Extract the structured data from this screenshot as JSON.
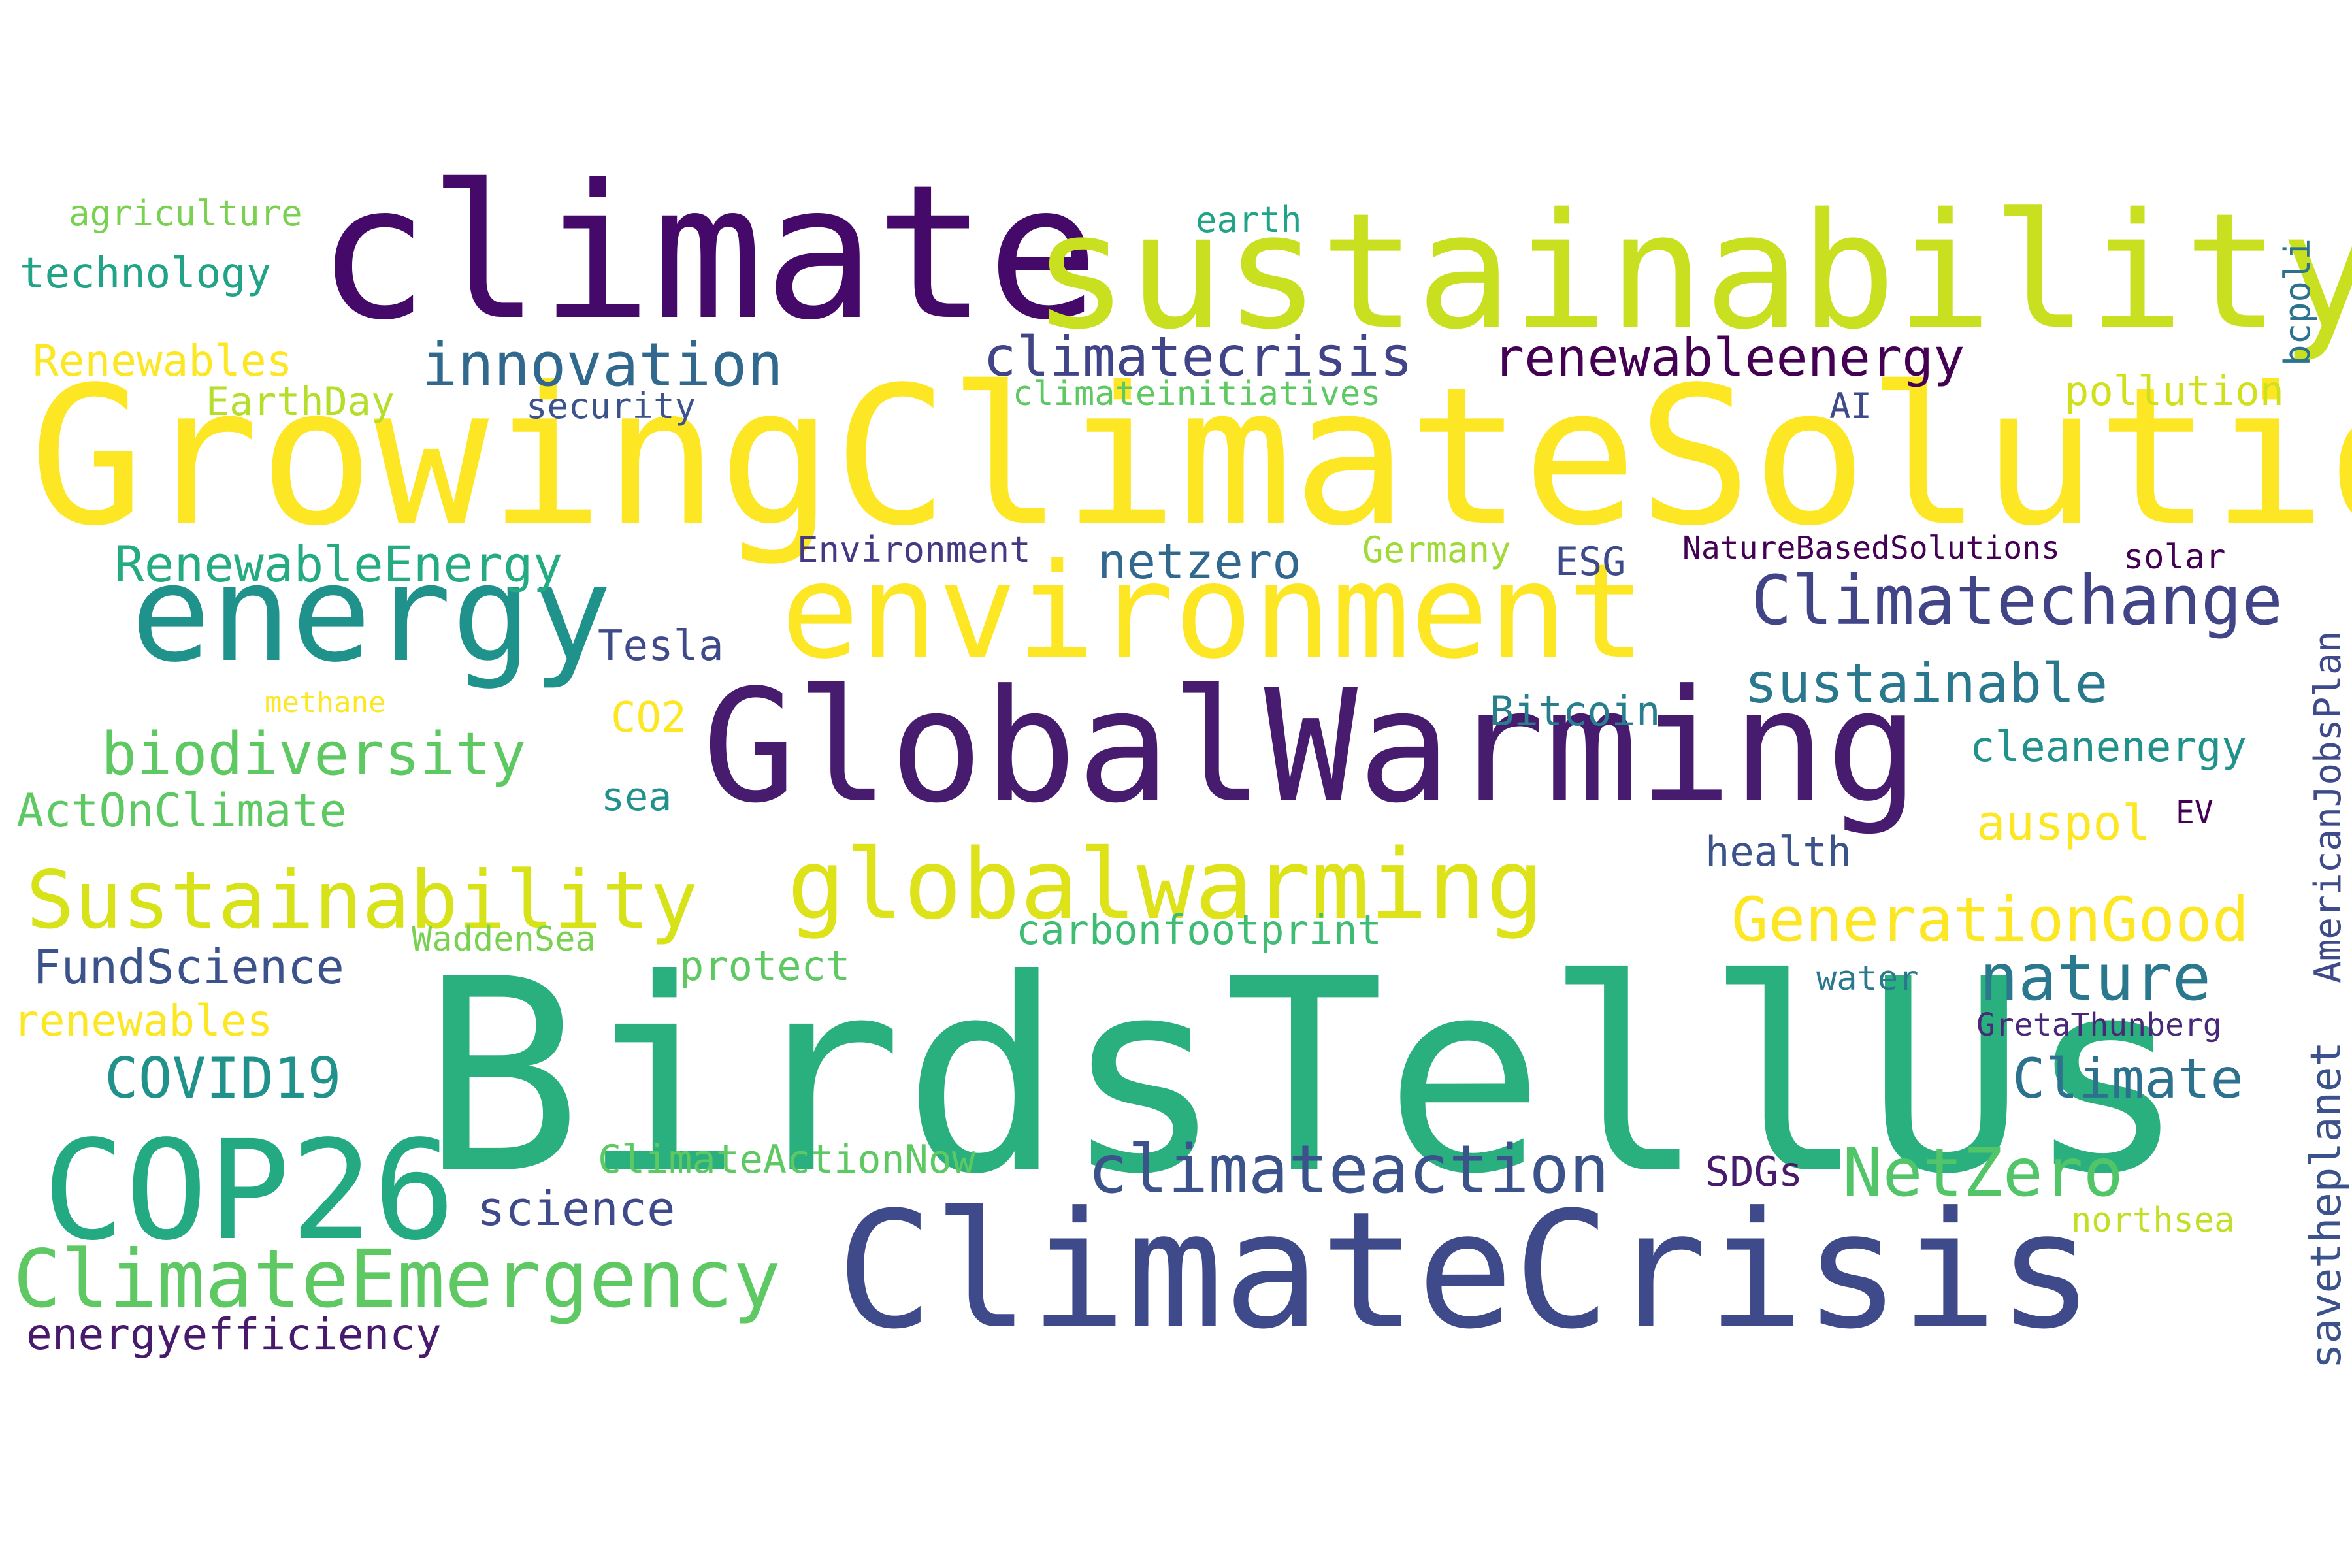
{
  "words": [
    {
      "text": "GrowingClimateSolutions",
      "color": "#fde725",
      "weight": 1.0
    },
    {
      "text": "BirdsTellUs",
      "color": "#2ab07f",
      "weight": 0.98
    },
    {
      "text": "climate",
      "color": "#450a69",
      "weight": 0.82
    },
    {
      "text": "sustainability",
      "color": "#c8e020",
      "weight": 0.8
    },
    {
      "text": "GlobalWarming",
      "color": "#471c6e",
      "weight": 0.78
    },
    {
      "text": "ClimateCrisis",
      "color": "#3e4a89",
      "weight": 0.76
    },
    {
      "text": "environment",
      "color": "#fde725",
      "weight": 0.62
    },
    {
      "text": "energy",
      "color": "#20928c",
      "weight": 0.6
    },
    {
      "text": "COP26",
      "color": "#24aa83",
      "weight": 0.58
    },
    {
      "text": "globalwarming",
      "color": "#dde318",
      "weight": 0.5
    },
    {
      "text": "Sustainability",
      "color": "#d8e219",
      "weight": 0.48
    },
    {
      "text": "ClimateEmergency",
      "color": "#5ec962",
      "weight": 0.48
    },
    {
      "text": "Climatechange",
      "color": "#414487",
      "weight": 0.4
    },
    {
      "text": "climateaction",
      "color": "#3b528b",
      "weight": 0.4
    },
    {
      "text": "NetZero",
      "color": "#52c569",
      "weight": 0.38
    },
    {
      "text": "GenerationGood",
      "color": "#fde725",
      "weight": 0.36
    },
    {
      "text": "innovation",
      "color": "#31688e",
      "weight": 0.36
    },
    {
      "text": "biodiversity",
      "color": "#5ec962",
      "weight": 0.36
    },
    {
      "text": "nature",
      "color": "#2a788e",
      "weight": 0.36
    },
    {
      "text": "climatecrisis",
      "color": "#414487",
      "weight": 0.33
    },
    {
      "text": "renewableenergy",
      "color": "#440154",
      "weight": 0.32
    },
    {
      "text": "sustainable",
      "color": "#2a788e",
      "weight": 0.32
    },
    {
      "text": "Climate",
      "color": "#2c728e",
      "weight": 0.32
    },
    {
      "text": "COVID19",
      "color": "#21918c",
      "weight": 0.31
    },
    {
      "text": "RenewableEnergy",
      "color": "#25ab82",
      "weight": 0.28
    },
    {
      "text": "netzero",
      "color": "#31688e",
      "weight": 0.28
    },
    {
      "text": "FundScience",
      "color": "#3b528b",
      "weight": 0.28
    },
    {
      "text": "ActOnClimate",
      "color": "#5ec962",
      "weight": 0.27
    },
    {
      "text": "science",
      "color": "#3e4a89",
      "weight": 0.27
    },
    {
      "text": "auspol",
      "color": "#fde725",
      "weight": 0.27
    },
    {
      "text": "Renewables",
      "color": "#fde725",
      "weight": 0.27
    },
    {
      "text": "energyefficiency",
      "color": "#481a6c",
      "weight": 0.26
    },
    {
      "text": "renewables",
      "color": "#fde725",
      "weight": 0.25
    },
    {
      "text": "technology",
      "color": "#20a386",
      "weight": 0.25
    },
    {
      "text": "cleanenergy",
      "color": "#21918c",
      "weight": 0.25
    },
    {
      "text": "pollution",
      "color": "#d0e11c",
      "weight": 0.25
    },
    {
      "text": "savetheplanet",
      "color": "#3b528b",
      "weight": 0.25
    },
    {
      "text": "Tesla",
      "color": "#3e4a89",
      "weight": 0.24
    },
    {
      "text": "ClimateActionNow",
      "color": "#5ec962",
      "weight": 0.24
    },
    {
      "text": "Bitcoin",
      "color": "#277f8e",
      "weight": 0.24
    },
    {
      "text": "protect",
      "color": "#5ec962",
      "weight": 0.24
    },
    {
      "text": "carbonfootprint",
      "color": "#3fbc73",
      "weight": 0.24
    },
    {
      "text": "EarthDay",
      "color": "#b5de2b",
      "weight": 0.23
    },
    {
      "text": "CO2",
      "color": "#fde725",
      "weight": 0.23
    },
    {
      "text": "health",
      "color": "#3b528b",
      "weight": 0.23
    },
    {
      "text": "SDGs",
      "color": "#481a6c",
      "weight": 0.23
    },
    {
      "text": "sea",
      "color": "#21918c",
      "weight": 0.22
    },
    {
      "text": "ESG",
      "color": "#3e4a89",
      "weight": 0.22
    },
    {
      "text": "AmericanJobsPlan",
      "color": "#3e4a89",
      "weight": 0.22
    },
    {
      "text": "agriculture",
      "color": "#7ad151",
      "weight": 0.21
    },
    {
      "text": "earth",
      "color": "#20a386",
      "weight": 0.21
    },
    {
      "text": "bcpoli",
      "color": "#2c728e",
      "weight": 0.21
    },
    {
      "text": "Environment",
      "color": "#443983",
      "weight": 0.2
    },
    {
      "text": "Germany",
      "color": "#a0da39",
      "weight": 0.2
    },
    {
      "text": "security",
      "color": "#3b528b",
      "weight": 0.2
    },
    {
      "text": "climateinitiatives",
      "color": "#5ec962",
      "weight": 0.2
    },
    {
      "text": "WaddenSea",
      "color": "#7ad151",
      "weight": 0.2
    },
    {
      "text": "water",
      "color": "#2a788e",
      "weight": 0.2
    },
    {
      "text": "northsea",
      "color": "#c0df25",
      "weight": 0.2
    },
    {
      "text": "solar",
      "color": "#440154",
      "weight": 0.2
    },
    {
      "text": "GretaThunberg",
      "color": "#482878",
      "weight": 0.19
    },
    {
      "text": "NatureBasedSolutions",
      "color": "#440154",
      "weight": 0.19
    },
    {
      "text": "AI",
      "color": "#3e4a89",
      "weight": 0.19
    },
    {
      "text": "EV",
      "color": "#440154",
      "weight": 0.19
    },
    {
      "text": "methane",
      "color": "#fde725",
      "weight": 0.18
    }
  ]
}
